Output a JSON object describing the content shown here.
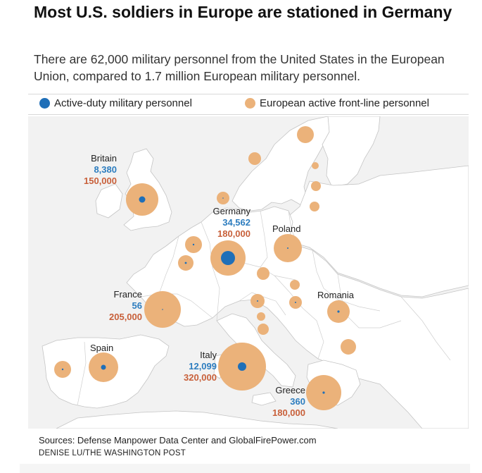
{
  "title": "Most U.S. soldiers in Europe are stationed in Germany",
  "subtitle": "There are 62,000 military personnel from the United States in the European Union, compared to 1.7 million European military personnel.",
  "legend": {
    "us_label": "Active-duty military personnel",
    "eu_label": "European active front-line personnel"
  },
  "colors": {
    "us": "#1f6fb8",
    "eu": "#ebb27a",
    "land": "#ffffff",
    "sea": "#f2f2f2",
    "border": "#c4c4c4"
  },
  "countries": {
    "britain": {
      "name": "Britain",
      "us": "8,380",
      "eu": "150,000"
    },
    "germany": {
      "name": "Germany",
      "us": "34,562",
      "eu": "180,000"
    },
    "poland": {
      "name": "Poland"
    },
    "france": {
      "name": "France",
      "us": "56",
      "eu": "205,000"
    },
    "romania": {
      "name": "Romania"
    },
    "spain": {
      "name": "Spain"
    },
    "italy": {
      "name": "Italy",
      "us": "12,099",
      "eu": "320,000"
    },
    "greece": {
      "name": "Greece",
      "us": "360",
      "eu": "180,000"
    }
  },
  "footer": {
    "sources": "Sources: Defense Manpower Data Center and GlobalFirePower.com",
    "credit": "DENISE LU/THE WASHINGTON POST"
  }
}
